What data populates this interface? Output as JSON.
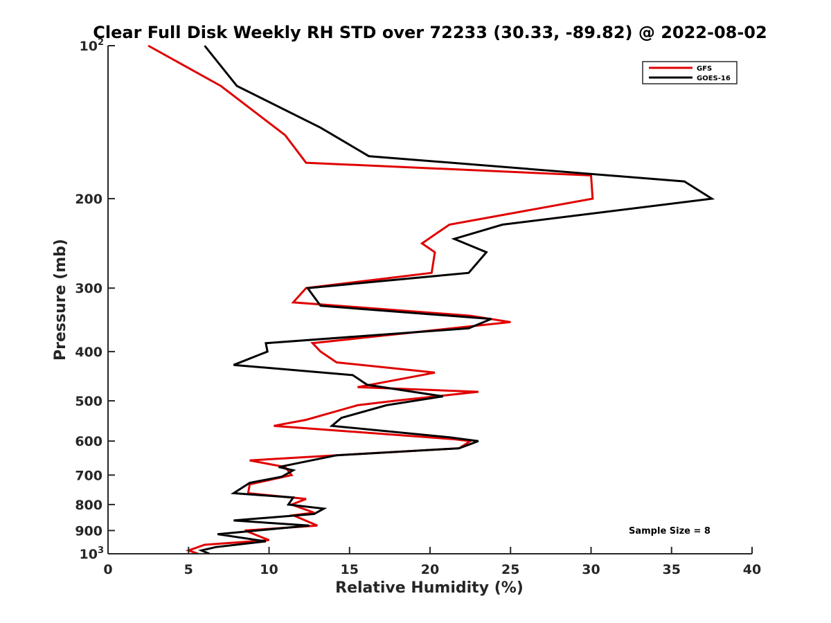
{
  "chart_data": {
    "type": "line",
    "title": "Clear Full Disk Weekly RH STD over 72233 (30.33, -89.82) @ 2022-08-02",
    "xlabel": "Relative Humidity (%)",
    "ylabel": "Pressure (mb)",
    "xlim": [
      0,
      40
    ],
    "ylim": [
      100,
      1000
    ],
    "y_scale": "log",
    "y_reversed": true,
    "grid": false,
    "legend_position": "top-right",
    "x_ticks": [
      0,
      5,
      10,
      15,
      20,
      25,
      30,
      35,
      40
    ],
    "y_ticks": [
      {
        "value": 100,
        "label": "10",
        "sup": "2"
      },
      {
        "value": 200,
        "label": "200"
      },
      {
        "value": 300,
        "label": "300"
      },
      {
        "value": 400,
        "label": "400"
      },
      {
        "value": 500,
        "label": "500"
      },
      {
        "value": 600,
        "label": "600"
      },
      {
        "value": 700,
        "label": "700"
      },
      {
        "value": 800,
        "label": "800"
      },
      {
        "value": 900,
        "label": "900"
      },
      {
        "value": 1000,
        "label": "10",
        "sup": "3"
      }
    ],
    "annotation": "Sample Size = 8",
    "series": [
      {
        "name": "GFS",
        "color": "#e00000",
        "points": [
          [
            2.5,
            100
          ],
          [
            7.0,
            120
          ],
          [
            11.0,
            150
          ],
          [
            12.3,
            170
          ],
          [
            30.0,
            180
          ],
          [
            30.1,
            200
          ],
          [
            21.2,
            225
          ],
          [
            19.5,
            245
          ],
          [
            20.3,
            255
          ],
          [
            20.1,
            280
          ],
          [
            12.3,
            300
          ],
          [
            11.5,
            320
          ],
          [
            22.5,
            340
          ],
          [
            25.0,
            350
          ],
          [
            12.7,
            385
          ],
          [
            13.2,
            400
          ],
          [
            14.2,
            420
          ],
          [
            20.3,
            440
          ],
          [
            15.5,
            470
          ],
          [
            23.0,
            480
          ],
          [
            17.8,
            500
          ],
          [
            15.5,
            510
          ],
          [
            12.3,
            545
          ],
          [
            10.3,
            560
          ],
          [
            21.5,
            595
          ],
          [
            22.5,
            600
          ],
          [
            21.8,
            620
          ],
          [
            16.0,
            635
          ],
          [
            8.8,
            655
          ],
          [
            11.0,
            675
          ],
          [
            11.4,
            700
          ],
          [
            8.8,
            730
          ],
          [
            8.7,
            760
          ],
          [
            12.3,
            780
          ],
          [
            11.4,
            800
          ],
          [
            12.8,
            830
          ],
          [
            11.5,
            840
          ],
          [
            13.0,
            880
          ],
          [
            8.5,
            900
          ],
          [
            10.0,
            940
          ],
          [
            6.0,
            960
          ],
          [
            5.0,
            985
          ],
          [
            5.6,
            1000
          ]
        ]
      },
      {
        "name": "GOES-16",
        "color": "#000000",
        "points": [
          [
            6.0,
            100
          ],
          [
            8.0,
            120
          ],
          [
            13.2,
            145
          ],
          [
            16.2,
            165
          ],
          [
            35.8,
            185
          ],
          [
            37.5,
            200
          ],
          [
            24.5,
            225
          ],
          [
            21.5,
            240
          ],
          [
            23.5,
            255
          ],
          [
            22.4,
            280
          ],
          [
            12.4,
            300
          ],
          [
            13.2,
            325
          ],
          [
            23.8,
            345
          ],
          [
            22.4,
            360
          ],
          [
            9.8,
            385
          ],
          [
            9.9,
            400
          ],
          [
            7.8,
            425
          ],
          [
            15.2,
            445
          ],
          [
            16.1,
            465
          ],
          [
            20.8,
            490
          ],
          [
            17.3,
            510
          ],
          [
            14.5,
            540
          ],
          [
            13.9,
            560
          ],
          [
            21.2,
            590
          ],
          [
            23.0,
            600
          ],
          [
            21.8,
            620
          ],
          [
            14.2,
            640
          ],
          [
            10.6,
            675
          ],
          [
            11.5,
            685
          ],
          [
            10.8,
            705
          ],
          [
            8.8,
            725
          ],
          [
            7.8,
            760
          ],
          [
            11.5,
            775
          ],
          [
            11.2,
            800
          ],
          [
            13.4,
            815
          ],
          [
            12.8,
            835
          ],
          [
            7.8,
            860
          ],
          [
            12.5,
            880
          ],
          [
            6.8,
            915
          ],
          [
            9.8,
            945
          ],
          [
            6.7,
            970
          ],
          [
            5.8,
            985
          ],
          [
            6.3,
            1000
          ]
        ]
      }
    ]
  }
}
